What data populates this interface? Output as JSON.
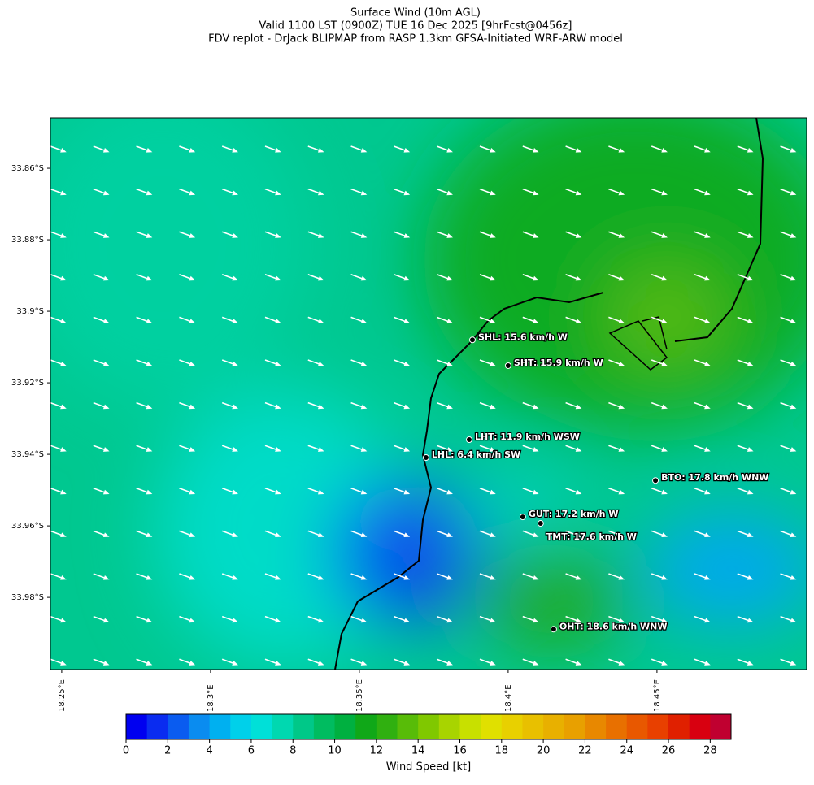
{
  "title": [
    "Surface Wind (10m AGL)",
    "Valid 1100 LST (0900Z) TUE 16 Dec 2025 [9hrFcst@0456z]",
    "FDV replot - DrJack BLIPMAP from RASP 1.3km GFSA-Initiated WRF-ARW model"
  ],
  "map": {
    "lonlim": [
      18.2462,
      18.5003
    ],
    "latlim": [
      -33.8459,
      -34.0002
    ],
    "lonticks": [
      {
        "value": 18.25,
        "label": "18.25°E"
      },
      {
        "value": 18.3,
        "label": "18.3°E"
      },
      {
        "value": 18.35,
        "label": "18.35°E"
      },
      {
        "value": 18.4,
        "label": "18.4°E"
      },
      {
        "value": 18.45,
        "label": "18.45°E"
      }
    ],
    "latticks": [
      {
        "value": -33.86,
        "label": "33.86°S"
      },
      {
        "value": -33.88,
        "label": "33.88°S"
      },
      {
        "value": -33.9,
        "label": "33.9°S"
      },
      {
        "value": -33.92,
        "label": "33.92°S"
      },
      {
        "value": -33.94,
        "label": "33.94°S"
      },
      {
        "value": -33.96,
        "label": "33.96°S"
      },
      {
        "value": -33.98,
        "label": "33.98°S"
      }
    ],
    "stations": [
      {
        "label": "SHL: 15.6 km/h W",
        "lon": 18.388,
        "lat": -33.908
      },
      {
        "label": "SHT: 15.9 km/h W",
        "lon": 18.4,
        "lat": -33.9152
      },
      {
        "label": "LHT: 11.9 km/h WSW",
        "lon": 18.3869,
        "lat": -33.9359
      },
      {
        "label": "LHL: 6.4 km/h SW",
        "lon": 18.3724,
        "lat": -33.9409
      },
      {
        "label": "BTO: 17.8 km/h WNW",
        "lon": 18.4495,
        "lat": -33.9473
      },
      {
        "label": "GUT: 17.2 km/h W",
        "lon": 18.4049,
        "lat": -33.9575
      },
      {
        "label": "TMT: 17.6 km/h W",
        "lon": 18.4109,
        "lat": -33.9593
      },
      {
        "label": "OHT: 18.6 km/h WNW",
        "lon": 18.4153,
        "lat": -33.9889
      }
    ]
  },
  "colorbar": {
    "label": "Wind Speed [kt]",
    "lim": [
      0,
      29
    ],
    "ticks": [
      0,
      2,
      4,
      6,
      8,
      10,
      12,
      14,
      16,
      18,
      20,
      22,
      24,
      26,
      28
    ],
    "colors": [
      "#0000f0",
      "#0a2cf0",
      "#0a5cf0",
      "#0a8cf0",
      "#00b0f0",
      "#00d0ea",
      "#00e0d8",
      "#00d8b0",
      "#00c888",
      "#00bc60",
      "#00b040",
      "#10a818",
      "#30b010",
      "#58bc08",
      "#80c800",
      "#a8d400",
      "#c8e000",
      "#e0e000",
      "#e8d000",
      "#e8c000",
      "#e8b000",
      "#e8a000",
      "#e88800",
      "#e87000",
      "#e85800",
      "#e84000",
      "#e02000",
      "#d80010",
      "#c00030"
    ]
  }
}
